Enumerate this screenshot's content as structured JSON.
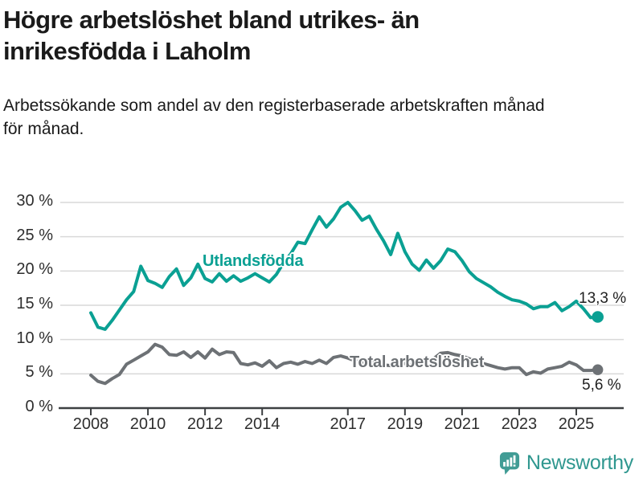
{
  "chart_data": {
    "type": "line",
    "title": "Högre arbetslöshet bland utrikes- än\ninrikesfödda i Laholm",
    "subtitle": "Arbetssökande som andel av den registerbaserade arbetskraften månad\nför månad.",
    "unit": "%",
    "grid": true,
    "legend": "inline-labels",
    "x_start": 2008,
    "x_step_years": 0.25,
    "x_end": 2025.75,
    "ylim": [
      0,
      30
    ],
    "xlim": [
      2007.9,
      2026.3
    ],
    "axis_color": "#3d4042",
    "grid_color": "#d9d9d9",
    "text_color": "#2e2e2e",
    "y_ticks": [
      {
        "label": "0 %",
        "value": 0
      },
      {
        "label": "5 %",
        "value": 5
      },
      {
        "label": "10 %",
        "value": 10
      },
      {
        "label": "15 %",
        "value": 15
      },
      {
        "label": "20 %",
        "value": 20
      },
      {
        "label": "25 %",
        "value": 25
      },
      {
        "label": "30 %",
        "value": 30
      }
    ],
    "x_ticks": [
      {
        "label": "2008",
        "year": 2008
      },
      {
        "label": "2010",
        "year": 2010
      },
      {
        "label": "2012",
        "year": 2012
      },
      {
        "label": "2014",
        "year": 2014
      },
      {
        "label": "2017",
        "year": 2017
      },
      {
        "label": "2019",
        "year": 2019
      },
      {
        "label": "2021",
        "year": 2021
      },
      {
        "label": "2023",
        "year": 2023
      },
      {
        "label": "2025",
        "year": 2025
      }
    ],
    "series": [
      {
        "name": "Utlandsfödda",
        "color": "#0aa093",
        "end_label": "13,3 %",
        "end_value": 13.3,
        "values": [
          13.9,
          11.8,
          11.5,
          12.8,
          14.3,
          15.8,
          17.0,
          20.7,
          18.6,
          18.2,
          17.6,
          19.2,
          20.3,
          17.9,
          19.0,
          21.0,
          18.9,
          18.4,
          19.6,
          18.5,
          19.3,
          18.5,
          19.0,
          19.6,
          19.0,
          18.4,
          19.5,
          21.2,
          22.5,
          24.2,
          24.0,
          26.0,
          27.9,
          26.4,
          27.6,
          29.3,
          30.0,
          28.8,
          27.4,
          28.0,
          26.1,
          24.4,
          22.4,
          25.5,
          22.8,
          21.0,
          20.1,
          21.6,
          20.4,
          21.5,
          23.2,
          22.8,
          21.5,
          19.9,
          18.9,
          18.3,
          17.7,
          16.9,
          16.3,
          15.8,
          15.6,
          15.2,
          14.5,
          14.8,
          14.8,
          15.4,
          14.2,
          14.8,
          15.6,
          14.5,
          13.2,
          13.3
        ]
      },
      {
        "name": "Total arbetslöshet",
        "color": "#6d7175",
        "end_label": "5,6 %",
        "end_value": 5.6,
        "values": [
          4.8,
          3.9,
          3.6,
          4.3,
          4.9,
          6.4,
          7.0,
          7.6,
          8.2,
          9.3,
          8.9,
          7.8,
          7.7,
          8.2,
          7.4,
          8.2,
          7.3,
          8.6,
          7.8,
          8.2,
          8.1,
          6.5,
          6.3,
          6.6,
          6.1,
          6.9,
          5.9,
          6.5,
          6.7,
          6.4,
          6.8,
          6.5,
          7.0,
          6.5,
          7.4,
          7.6,
          7.3,
          6.9,
          6.7,
          6.8,
          6.6,
          6.3,
          6.2,
          6.4,
          6.5,
          6.3,
          6.6,
          6.9,
          7.2,
          8.0,
          8.1,
          7.8,
          7.6,
          7.2,
          6.8,
          6.5,
          6.2,
          5.9,
          5.7,
          5.9,
          5.9,
          4.9,
          5.3,
          5.1,
          5.7,
          5.9,
          6.1,
          6.7,
          6.3,
          5.5,
          5.5,
          5.6
        ]
      }
    ]
  },
  "branding": {
    "wordmark": "Newsworthy",
    "wordmark_color": "#2f978f",
    "icon_color": "#419c95",
    "icon": "newsworthy-chart-bubble-icon"
  }
}
